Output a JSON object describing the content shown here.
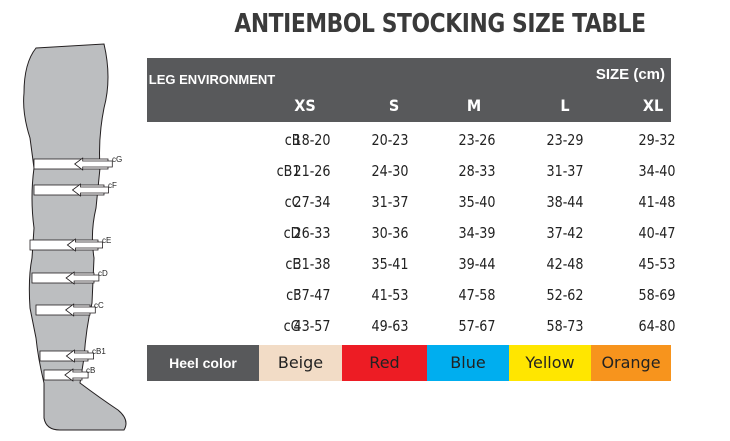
{
  "title": "ANTIEMBOL STOCKING SIZE TABLE",
  "header": {
    "leg_environment": "LEG ENVIRONMENT",
    "size_unit": "SIZE (cm)",
    "sizes": [
      "XS",
      "S",
      "M",
      "L",
      "XL"
    ]
  },
  "rows": [
    {
      "label": "cB",
      "values": [
        "18-20",
        "20-23",
        "23-26",
        "23-29",
        "29-32"
      ]
    },
    {
      "label": "cB1",
      "values": [
        "21-26",
        "24-30",
        "28-33",
        "31-37",
        "34-40"
      ]
    },
    {
      "label": "cC",
      "values": [
        "27-34",
        "31-37",
        "35-40",
        "38-44",
        "41-48"
      ]
    },
    {
      "label": "cD",
      "values": [
        "26-33",
        "30-36",
        "34-39",
        "37-42",
        "40-47"
      ]
    },
    {
      "label": "cE",
      "values": [
        "31-38",
        "35-41",
        "39-44",
        "42-48",
        "45-53"
      ]
    },
    {
      "label": "cF",
      "values": [
        "37-47",
        "41-53",
        "47-58",
        "52-62",
        "58-69"
      ]
    },
    {
      "label": "cG",
      "values": [
        "43-57",
        "49-63",
        "57-67",
        "58-73",
        "64-80"
      ]
    }
  ],
  "heel": {
    "label": "Heel color",
    "colors": [
      {
        "name": "Beige",
        "hex": "#f2dcc6"
      },
      {
        "name": "Red",
        "hex": "#ed1c24"
      },
      {
        "name": "Blue",
        "hex": "#00aeef"
      },
      {
        "name": "Yellow",
        "hex": "#ffe600"
      },
      {
        "name": "Orange",
        "hex": "#f7941d"
      }
    ]
  },
  "leg_markers": [
    "cG",
    "cF",
    "cE",
    "cD",
    "cC",
    "cB1",
    "cB"
  ]
}
